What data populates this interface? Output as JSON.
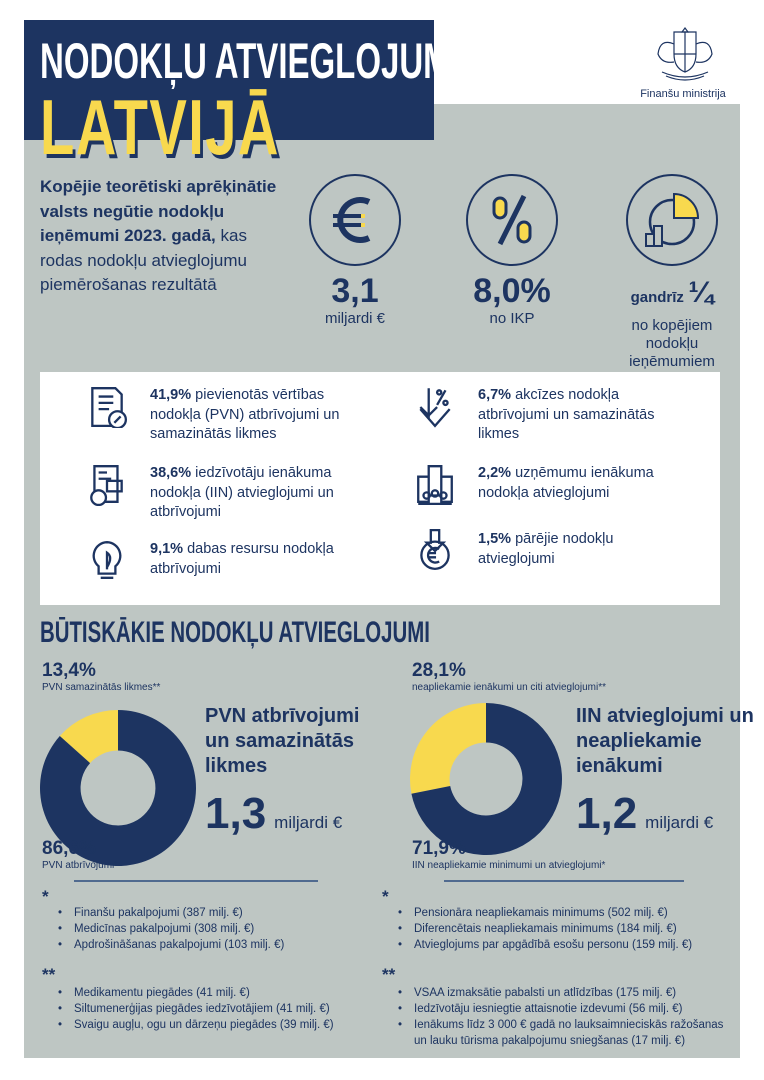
{
  "header": {
    "title_line1": "NODOKĻU ATVIEGLOJUMI",
    "title_line2": "LATVIJĀ",
    "ministry": "Finanšu ministrija"
  },
  "colors": {
    "navy": "#1d3461",
    "yellow": "#f8d94e",
    "panel": "#bec6c3"
  },
  "summary": {
    "bold": "Kopējie teorētiski aprēķinātie valsts negūtie nodokļu ieņēmumi 2023. gadā,",
    "regular": "kas rodas nodokļu atvieglojumu piemērošanas rezultātā"
  },
  "kpis": [
    {
      "icon": "euro-icon",
      "value": "3,1",
      "label": "miljardi €"
    },
    {
      "icon": "percent-icon",
      "value": "8,0%",
      "label": "no IKP"
    },
    {
      "icon": "pie-chart-icon",
      "prefix": "gandrīz",
      "value": "¼",
      "label": "no kopējiem nodokļu ieņēmumiem"
    }
  ],
  "breakdown": [
    {
      "icon": "document-percent-icon",
      "pct": "41,9%",
      "text": "pievienotās vērtības nodokļa (PVN) atbrīvojumi un samazinātās likmes"
    },
    {
      "icon": "income-tax-icon",
      "pct": "38,6%",
      "text": "iedzīvotāju ienākuma nodokļa (IIN) atvieglojumi un atbrīvojumi"
    },
    {
      "icon": "lightbulb-leaf-icon",
      "pct": "9,1%",
      "text": "dabas resursu nodokļa atbrīvojumi"
    },
    {
      "icon": "percent-down-arrow-icon",
      "pct": "6,7%",
      "text": "akcīzes nodokļa atbrīvojumi un samazinātās likmes"
    },
    {
      "icon": "company-building-icon",
      "pct": "2,2%",
      "text": "uzņēmumu ienākuma nodokļa atvieglojumi"
    },
    {
      "icon": "euro-coin-arrow-icon",
      "pct": "1,5%",
      "text": "pārējie nodokļu atvieglojumi"
    }
  ],
  "section_title": "BŪTISKĀKIE NODOKĻU ATVIEGLOJUMI",
  "chart_data": [
    {
      "type": "pie",
      "donut": true,
      "title": "PVN atbrīvojumi un samazinātās likmes",
      "total": "1,3",
      "total_unit": "miljardi €",
      "slices": [
        {
          "label": "PVN samazinātās likmes**",
          "value": 13.4,
          "display": "13,4%",
          "color": "#f8d94e"
        },
        {
          "label": "PVN atbrīvojumi*",
          "value": 86.6,
          "display": "86,6%",
          "color": "#1d3461"
        }
      ]
    },
    {
      "type": "pie",
      "donut": true,
      "title": "IIN atvieglojumi un neapliekamie ienākumi",
      "total": "1,2",
      "total_unit": "miljardi €",
      "slices": [
        {
          "label": "neapliekamie ienākumi un citi atvieglojumi**",
          "value": 28.1,
          "display": "28,1%",
          "color": "#f8d94e"
        },
        {
          "label": "IIN neapliekamie minimumi un atvieglojumi*",
          "value": 71.9,
          "display": "71,9%",
          "color": "#1d3461"
        }
      ]
    }
  ],
  "notes": {
    "left": {
      "star1": "*",
      "star1_items": [
        "Finanšu pakalpojumi (387 milj. €)",
        "Medicīnas pakalpojumi (308 milj. €)",
        "Apdrošināšanas pakalpojumi (103 milj. €)"
      ],
      "star2": "**",
      "star2_items": [
        "Medikamentu piegādes (41 milj. €)",
        "Siltumenerģijas piegādes iedzīvotājiem (41 milj. €)",
        "Svaigu augļu, ogu un dārzeņu piegādes (39 milj. €)"
      ]
    },
    "right": {
      "star1": "*",
      "star1_items": [
        "Pensionāra neapliekamais minimums (502 milj. €)",
        "Diferencētais neapliekamais minimums (184  milj. €)",
        "Atvieglojums par apgādībā esošu personu (159 milj. €)"
      ],
      "star2": "**",
      "star2_items": [
        "VSAA izmaksātie pabalsti un atlīdzības (175 milj. €)",
        "Iedzīvotāju iesniegtie attaisnotie izdevumi (56 milj. €)",
        "Ienākums līdz 3 000 € gadā no lauksaimnieciskās ražošanas un lauku tūrisma pakalpojumu sniegšanas (17 milj. €)"
      ]
    }
  }
}
